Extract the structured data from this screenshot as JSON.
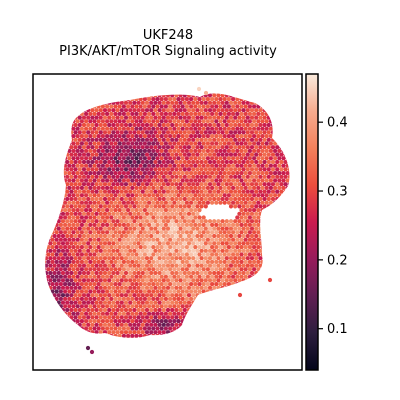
{
  "chart_data": {
    "type": "heatmap",
    "title_lines": [
      "UKF248",
      "PI3K/AKT/mTOR Signaling activity"
    ],
    "xlabel": "",
    "ylabel": "",
    "grid": false,
    "colormap": "rocket",
    "colorbar": {
      "range": [
        0.04,
        0.47
      ],
      "ticks": [
        0.1,
        0.2,
        0.3,
        0.4
      ],
      "tick_labels": [
        "0.1",
        "0.2",
        "0.3",
        "0.4"
      ]
    },
    "colors": {
      "rocket_stops": [
        "#03051a",
        "#2d1e3e",
        "#611f53",
        "#971c5b",
        "#cb1b4f",
        "#ec4e3d",
        "#f3815c",
        "#f6ac8f",
        "#faebdd"
      ],
      "axes_frame": "#000000"
    }
  }
}
